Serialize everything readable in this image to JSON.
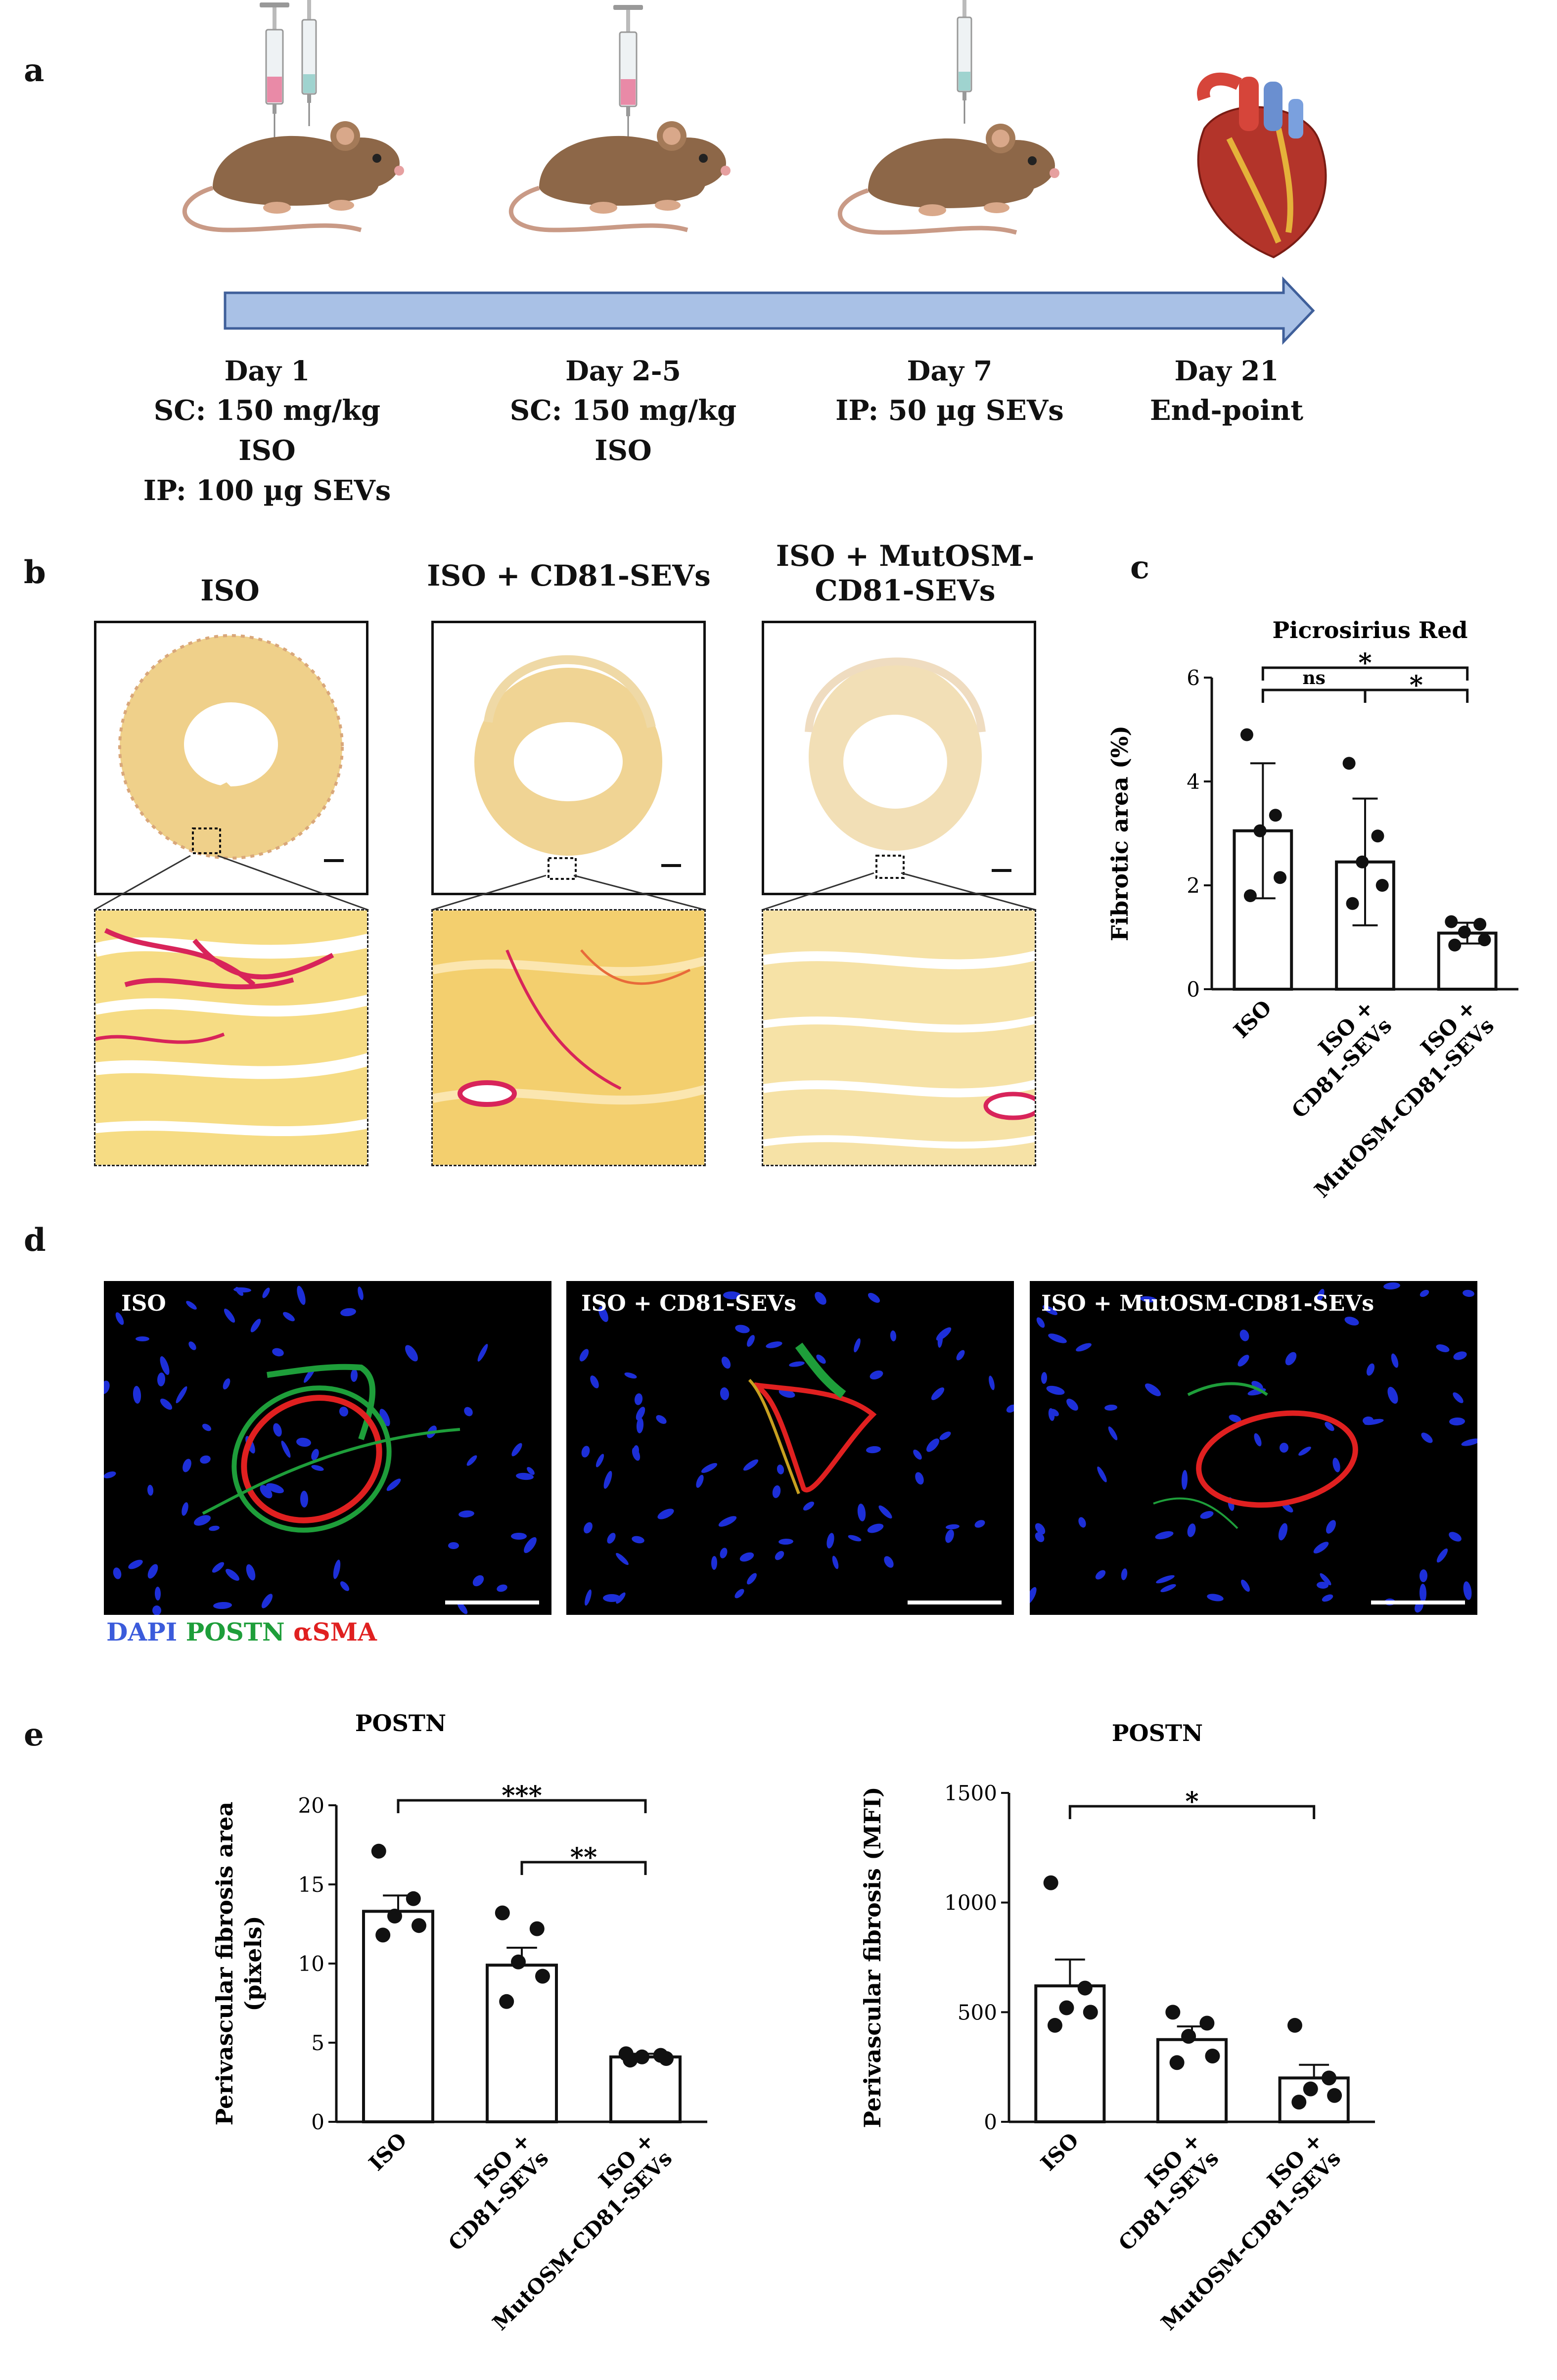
{
  "panel_a": {
    "label": "a",
    "timepoints": [
      {
        "day": "Day 1",
        "lines": [
          "SC: 150 mg/kg ISO",
          "IP: 100 µg SEVs"
        ]
      },
      {
        "day": "Day 2-5",
        "lines": [
          "SC: 150 mg/kg ISO"
        ]
      },
      {
        "day": "Day 7",
        "lines": [
          "IP: 50 µg SEVs"
        ]
      },
      {
        "day": "Day 21",
        "lines": [
          "End-point"
        ]
      }
    ],
    "colors": {
      "arrow": "#a9c1e6",
      "arrow_edge": "#3f5f9a",
      "mouse": "#8d6748",
      "heart": "#b3342a"
    }
  },
  "panel_b": {
    "label": "b",
    "groups": [
      "ISO",
      "ISO + CD81-SEVs",
      "ISO + MutOSM-\nCD81-SEVs"
    ]
  },
  "panel_c": {
    "label": "c"
  },
  "panel_d": {
    "label": "d",
    "images": [
      "ISO",
      "ISO + CD81-SEVs",
      "ISO + MutOSM-CD81-SEVs"
    ],
    "legend": [
      {
        "text": "DAPI",
        "color": "#3b5bdb"
      },
      {
        "text": "POSTN",
        "color": "#1e9e3a"
      },
      {
        "text": "αSMA",
        "color": "#e02020"
      }
    ]
  },
  "panel_e": {
    "label": "e"
  },
  "chart_data": [
    {
      "type": "bar",
      "title": "Picrosirius Red",
      "ylabel": "Fibrotic area (%)",
      "categories": [
        "ISO",
        "ISO +\nCD81-SEVs",
        "ISO +\nMutOSM-CD81-SEVs"
      ],
      "values": [
        3.05,
        2.45,
        1.08
      ],
      "errors": [
        1.3,
        1.22,
        0.2
      ],
      "points": [
        [
          4.9,
          3.35,
          3.05,
          2.15,
          1.8
        ],
        [
          4.35,
          2.95,
          2.45,
          2.0,
          1.65
        ],
        [
          1.3,
          1.25,
          1.1,
          0.95,
          0.85
        ]
      ],
      "ylim": [
        0,
        6
      ],
      "yticks": [
        0,
        2,
        4,
        6
      ],
      "significance": [
        {
          "from": 0,
          "to": 1,
          "label": "ns",
          "level": 1
        },
        {
          "from": 1,
          "to": 2,
          "label": "*",
          "level": 1
        },
        {
          "from": 0,
          "to": 2,
          "label": "*",
          "level": 2
        }
      ]
    },
    {
      "type": "bar",
      "title": "POSTN",
      "ylabel": "Perivascular fibrosis area\n(pixels)",
      "categories": [
        "ISO",
        "ISO +\nCD81-SEVs",
        "ISO +\nMutOSM-CD81-SEVs"
      ],
      "values": [
        13.3,
        9.9,
        4.1
      ],
      "errors": [
        1.0,
        1.1,
        0.2
      ],
      "points": [
        [
          17.1,
          14.1,
          13.0,
          12.4,
          11.8
        ],
        [
          13.2,
          12.2,
          10.1,
          9.2,
          7.6
        ],
        [
          4.3,
          4.2,
          4.1,
          4.0,
          3.9
        ]
      ],
      "ylim": [
        0,
        20
      ],
      "yticks": [
        0,
        5,
        10,
        15,
        20
      ],
      "significance": [
        {
          "from": 1,
          "to": 2,
          "label": "**",
          "level": 1
        },
        {
          "from": 0,
          "to": 2,
          "label": "***",
          "level": 2
        }
      ]
    },
    {
      "type": "bar",
      "title": "POSTN",
      "ylabel": "Perivascular fibrosis (MFI)",
      "categories": [
        "ISO",
        "ISO +\nCD81-SEVs",
        "ISO +\nMutOSM-CD81-SEVs"
      ],
      "values": [
        620,
        375,
        200
      ],
      "errors": [
        120,
        60,
        60
      ],
      "points": [
        [
          1090,
          610,
          520,
          500,
          440
        ],
        [
          500,
          450,
          390,
          300,
          270
        ],
        [
          440,
          200,
          150,
          120,
          90
        ]
      ],
      "ylim": [
        0,
        1500
      ],
      "yticks": [
        0,
        500,
        1000,
        1500
      ],
      "significance": [
        {
          "from": 0,
          "to": 2,
          "label": "*",
          "level": 1
        }
      ]
    }
  ]
}
